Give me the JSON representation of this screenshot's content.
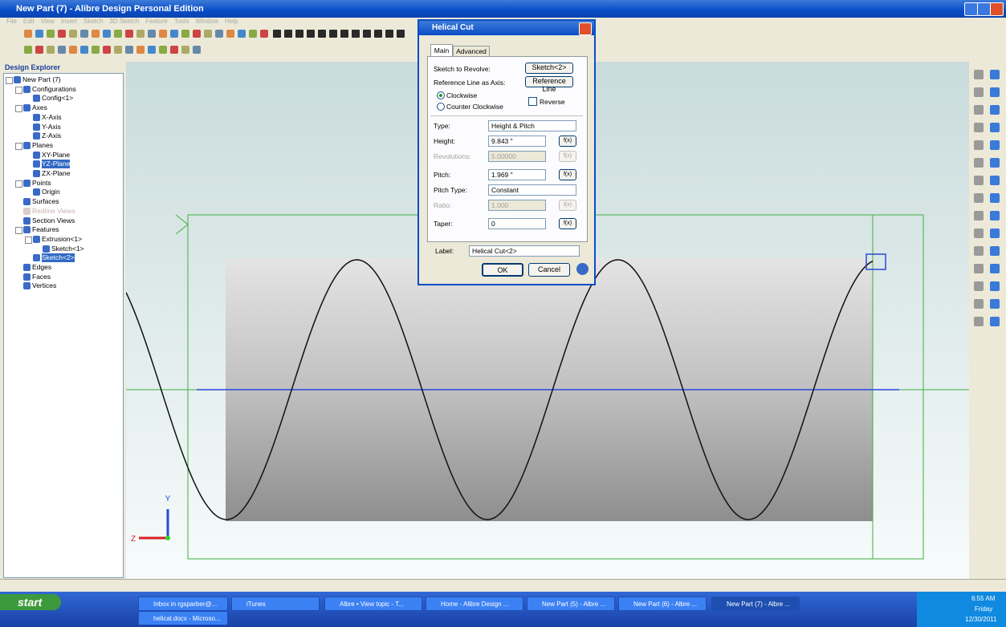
{
  "window": {
    "title": "New Part (7) - Alibre Design Personal Edition",
    "menu": [
      "File",
      "Edit",
      "View",
      "Insert",
      "Sketch",
      "3D Sketch",
      "Feature",
      "Tools",
      "Window",
      "Help"
    ]
  },
  "explorer": {
    "title": "Design Explorer",
    "tree": {
      "label": "New Part (7)",
      "children": [
        {
          "label": "Configurations",
          "children": [
            {
              "label": "Config<1>"
            }
          ]
        },
        {
          "label": "Axes",
          "children": [
            {
              "label": "X-Axis"
            },
            {
              "label": "Y-Axis"
            },
            {
              "label": "Z-Axis"
            }
          ]
        },
        {
          "label": "Planes",
          "children": [
            {
              "label": "XY-Plane"
            },
            {
              "label": "YZ-Plane",
              "selected": true
            },
            {
              "label": "ZX-Plane"
            }
          ]
        },
        {
          "label": "Points",
          "children": [
            {
              "label": "Origin"
            }
          ]
        },
        {
          "label": "Surfaces"
        },
        {
          "label": "Redline Views",
          "disabled": true
        },
        {
          "label": "Section Views"
        },
        {
          "label": "Features",
          "children": [
            {
              "label": "Extrusion<1>",
              "children": [
                {
                  "label": "Sketch<1>"
                }
              ]
            },
            {
              "label": "Sketch<2>",
              "selected": true
            }
          ]
        },
        {
          "label": "Edges"
        },
        {
          "label": "Faces"
        },
        {
          "label": "Vertices"
        }
      ]
    }
  },
  "viewport": {
    "axis_y": "Y",
    "axis_z": "Z"
  },
  "dialog": {
    "title": "Helical Cut",
    "tabs": [
      "Main",
      "Advanced"
    ],
    "sketch_label": "Sketch to Revolve:",
    "sketch_value": "Sketch<2>",
    "axis_label": "Reference Line as Axis:",
    "axis_value": "Reference Line",
    "clockwise": "Clockwise",
    "counter_clockwise": "Counter Clockwise",
    "reverse": "Reverse",
    "fx": "f(x)",
    "fields": [
      {
        "label": "Type:",
        "value": "Height & Pitch",
        "kind": "select"
      },
      {
        "label": "Height:",
        "value": "9.843 \"",
        "kind": "spin"
      },
      {
        "label": "Revolutions:",
        "value": "5.00000",
        "kind": "spin",
        "disabled": true
      },
      {
        "label": "Pitch:",
        "value": "1.969 \"",
        "kind": "spin"
      },
      {
        "label": "Pitch Type:",
        "value": "Constant",
        "kind": "select"
      },
      {
        "label": "Ratio:",
        "value": "1.000",
        "kind": "spin",
        "disabled": true
      },
      {
        "label": "Taper:",
        "value": "0",
        "kind": "spin"
      }
    ],
    "label_label": "Label:",
    "label_value": "Helical Cut<2>",
    "ok": "OK",
    "cancel": "Cancel"
  },
  "taskbar": {
    "start": "start",
    "items": [
      "Inbox in rgsparber@...",
      "iTunes",
      "Albre • View topic - T...",
      "Home - Alibre Design ...",
      "New Part (5) - Albre ...",
      "New Part (6) - Albre ...",
      "New Part (7) - Albre ..."
    ],
    "second_row": "helical.docx - Microso...",
    "time": "6:55 AM",
    "day": "Friday",
    "date": "12/30/2011"
  }
}
